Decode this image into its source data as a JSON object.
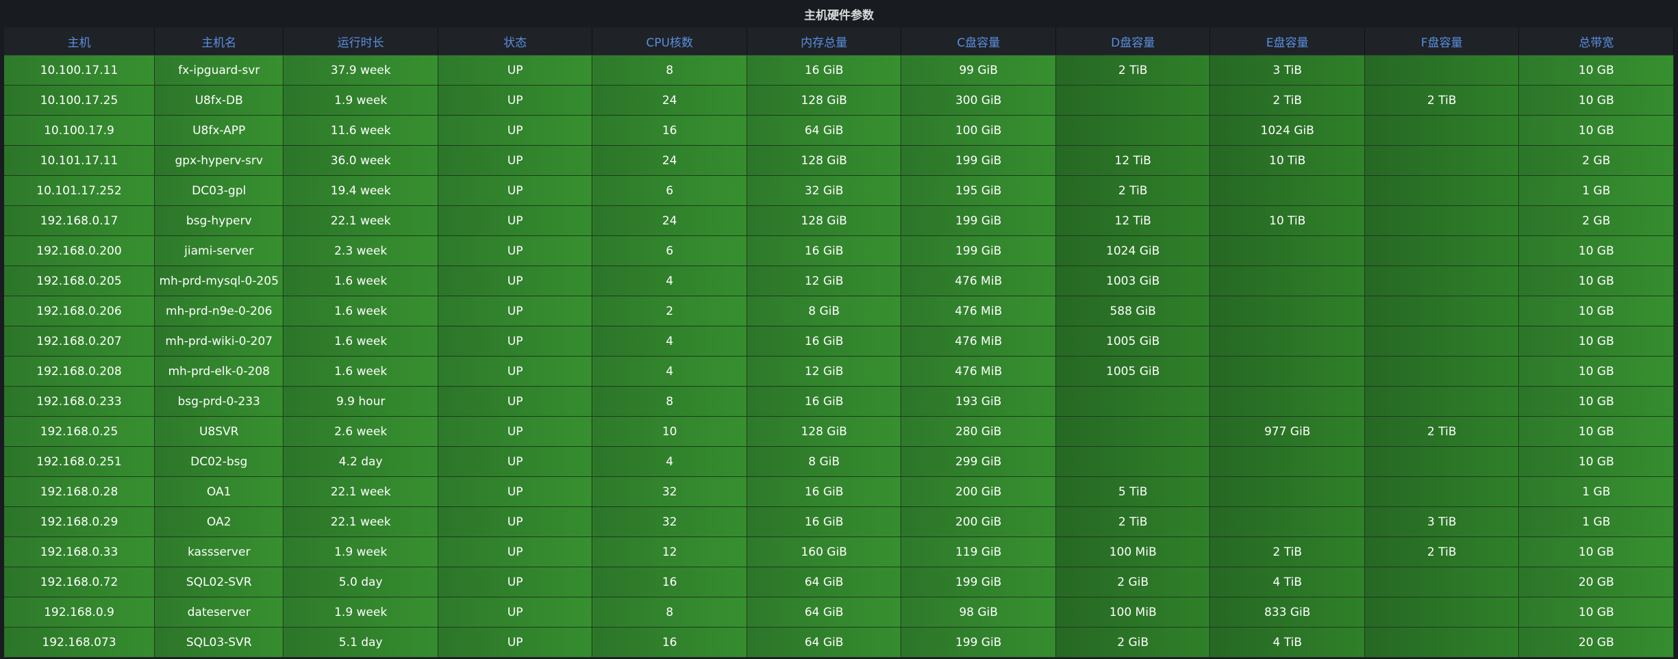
{
  "panel": {
    "title": "主机硬件参数"
  },
  "table": {
    "headers": [
      "主机",
      "主机名",
      "运行时长",
      "状态",
      "CPU核数",
      "内存总量",
      "C盘容量",
      "D盘容量",
      "E盘容量",
      "F盘容量",
      "总带宽"
    ],
    "rows": [
      [
        "10.100.17.11",
        "fx-ipguard-svr",
        "37.9 week",
        "UP",
        "8",
        "16 GiB",
        "99 GiB",
        "2 TiB",
        "3 TiB",
        "",
        "10 GB"
      ],
      [
        "10.100.17.25",
        "U8fx-DB",
        "1.9 week",
        "UP",
        "24",
        "128 GiB",
        "300 GiB",
        "",
        "2 TiB",
        "2 TiB",
        "10 GB"
      ],
      [
        "10.100.17.9",
        "U8fx-APP",
        "11.6 week",
        "UP",
        "16",
        "64 GiB",
        "100 GiB",
        "",
        "1024 GiB",
        "",
        "10 GB"
      ],
      [
        "10.101.17.11",
        "gpx-hyperv-srv",
        "36.0 week",
        "UP",
        "24",
        "128 GiB",
        "199 GiB",
        "12 TiB",
        "10 TiB",
        "",
        "2 GB"
      ],
      [
        "10.101.17.252",
        "DC03-gpl",
        "19.4 week",
        "UP",
        "6",
        "32 GiB",
        "195 GiB",
        "2 TiB",
        "",
        "",
        "1 GB"
      ],
      [
        "192.168.0.17",
        "bsg-hyperv",
        "22.1 week",
        "UP",
        "24",
        "128 GiB",
        "199 GiB",
        "12 TiB",
        "10 TiB",
        "",
        "2 GB"
      ],
      [
        "192.168.0.200",
        "jiami-server",
        "2.3 week",
        "UP",
        "6",
        "16 GiB",
        "199 GiB",
        "1024 GiB",
        "",
        "",
        "10 GB"
      ],
      [
        "192.168.0.205",
        "mh-prd-mysql-0-205",
        "1.6 week",
        "UP",
        "4",
        "12 GiB",
        "476 MiB",
        "1003 GiB",
        "",
        "",
        "10 GB"
      ],
      [
        "192.168.0.206",
        "mh-prd-n9e-0-206",
        "1.6 week",
        "UP",
        "2",
        "8 GiB",
        "476 MiB",
        "588 GiB",
        "",
        "",
        "10 GB"
      ],
      [
        "192.168.0.207",
        "mh-prd-wiki-0-207",
        "1.6 week",
        "UP",
        "4",
        "16 GiB",
        "476 MiB",
        "1005 GiB",
        "",
        "",
        "10 GB"
      ],
      [
        "192.168.0.208",
        "mh-prd-elk-0-208",
        "1.6 week",
        "UP",
        "4",
        "12 GiB",
        "476 MiB",
        "1005 GiB",
        "",
        "",
        "10 GB"
      ],
      [
        "192.168.0.233",
        "bsg-prd-0-233",
        "9.9 hour",
        "UP",
        "8",
        "16 GiB",
        "193 GiB",
        "",
        "",
        "",
        "10 GB"
      ],
      [
        "192.168.0.25",
        "U8SVR",
        "2.6 week",
        "UP",
        "10",
        "128 GiB",
        "280 GiB",
        "",
        "977 GiB",
        "2 TiB",
        "10 GB"
      ],
      [
        "192.168.0.251",
        "DC02-bsg",
        "4.2 day",
        "UP",
        "4",
        "8 GiB",
        "299 GiB",
        "",
        "",
        "",
        "10 GB"
      ],
      [
        "192.168.0.28",
        "OA1",
        "22.1 week",
        "UP",
        "32",
        "16 GiB",
        "200 GiB",
        "5 TiB",
        "",
        "",
        "1 GB"
      ],
      [
        "192.168.0.29",
        "OA2",
        "22.1 week",
        "UP",
        "32",
        "16 GiB",
        "200 GiB",
        "2 TiB",
        "",
        "3 TiB",
        "1 GB"
      ],
      [
        "192.168.0.33",
        "kassserver",
        "1.9 week",
        "UP",
        "12",
        "160 GiB",
        "119 GiB",
        "100 MiB",
        "2 TiB",
        "2 TiB",
        "10 GB"
      ],
      [
        "192.168.0.72",
        "SQL02-SVR",
        "5.0 day",
        "UP",
        "16",
        "64 GiB",
        "199 GiB",
        "2 GiB",
        "4 TiB",
        "",
        "20 GB"
      ],
      [
        "192.168.0.9",
        "dateserver",
        "1.9 week",
        "UP",
        "8",
        "64 GiB",
        "98 GiB",
        "100 MiB",
        "833 GiB",
        "",
        "10 GB"
      ],
      [
        "192.168.073",
        "SQL03-SVR",
        "5.1 day",
        "UP",
        "16",
        "64 GiB",
        "199 GiB",
        "2 GiB",
        "4 TiB",
        "",
        "20 GB"
      ]
    ]
  },
  "colors": {
    "header_text": "#5a8fe0",
    "cell_bg": "#34882e",
    "status_up": "#34882e"
  }
}
